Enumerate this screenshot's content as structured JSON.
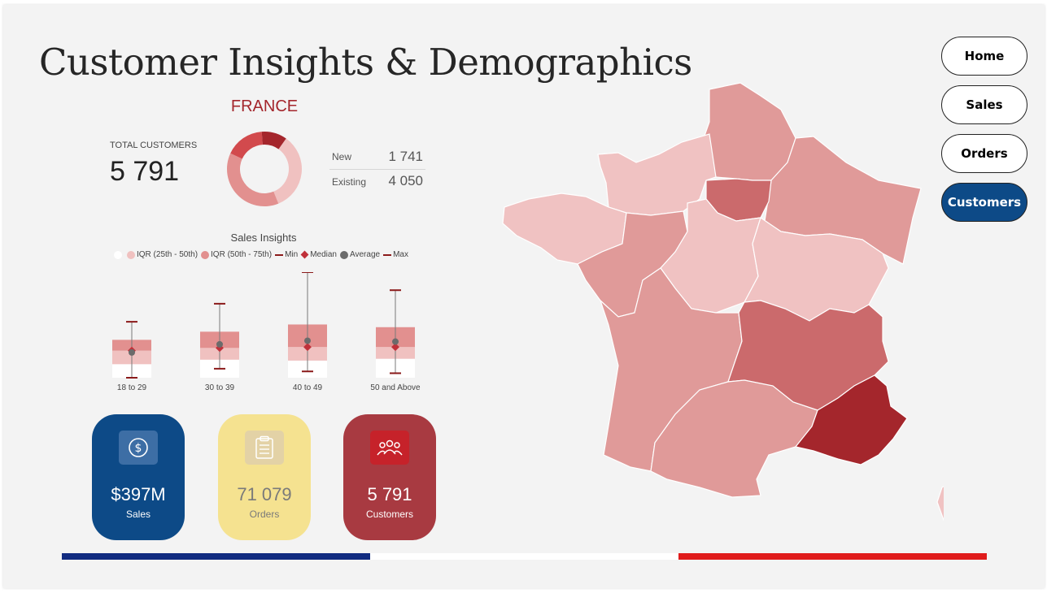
{
  "title": "Customer Insights & Demographics",
  "nav": {
    "home": "Home",
    "sales": "Sales",
    "orders": "Orders",
    "customers": "Customers"
  },
  "country": "FRANCE",
  "total_customers": {
    "label": "TOTAL CUSTOMERS",
    "value": "5 791"
  },
  "split": {
    "new_label": "New",
    "new_value": "1 741",
    "existing_label": "Existing",
    "existing_value": "4 050"
  },
  "sales_insights": {
    "title": "Sales Insights",
    "legend": {
      "iqr_low": "IQR (25th - 50th)",
      "iqr_high": "IQR (50th - 75th)",
      "min": "Min",
      "median": "Median",
      "average": "Average",
      "max": "Max"
    }
  },
  "chart_data": {
    "type": "boxplot",
    "title": "Sales Insights",
    "categories": [
      "18 to 29",
      "30 to 39",
      "40 to 49",
      "50 and Above"
    ],
    "series": [
      {
        "name": "Min",
        "values": [
          0,
          10,
          7,
          5
        ]
      },
      {
        "name": "IQR (25th - 50th)",
        "values": [
          15,
          20,
          19,
          21
        ]
      },
      {
        "name": "Median",
        "values": [
          30,
          33,
          34,
          34
        ]
      },
      {
        "name": "IQR (50th - 75th)",
        "values": [
          42,
          51,
          59,
          56
        ]
      },
      {
        "name": "Average",
        "values": [
          28,
          37,
          41,
          40
        ]
      },
      {
        "name": "Max",
        "values": [
          62,
          82,
          117,
          97
        ]
      }
    ],
    "ylim": [
      0,
      117
    ],
    "legend_position": "top",
    "grid": false,
    "colors": {
      "iqr_low": "#f0c1c0",
      "iqr_high": "#e2908f",
      "whisker": "#7a7a7a",
      "cap": "#8b1a1a",
      "median": "#c0313a",
      "average": "#6b6b6b",
      "base": "#ffffff"
    }
  },
  "donut": {
    "values": [
      {
        "label": "New",
        "value": 1741,
        "color": "#f0c1c0"
      },
      {
        "label": "Existing",
        "value": 4050,
        "color": "#e2908f"
      }
    ],
    "colors": [
      "#f0c1c0",
      "#e2908f",
      "#d24a4d",
      "#a4262c"
    ]
  },
  "kpis": [
    {
      "value": "$397M",
      "label": "Sales",
      "icon": "dollar-icon",
      "bg": "#0d4a87",
      "fg": "#ffffff"
    },
    {
      "value": "71 079",
      "label": "Orders",
      "icon": "clipboard-icon",
      "bg": "#f5e290",
      "fg": "#7a7a7a"
    },
    {
      "value": "5 791",
      "label": "Customers",
      "icon": "people-icon",
      "bg": "#a83a41",
      "fg": "#ffffff"
    }
  ],
  "flag_colors": [
    "#112b80",
    "#ffffff",
    "#e01b1b"
  ],
  "map_colors": {
    "lightest": "#f0c2c2",
    "light": "#e09a99",
    "mid": "#cb6a6c",
    "dark": "#a4262c"
  }
}
